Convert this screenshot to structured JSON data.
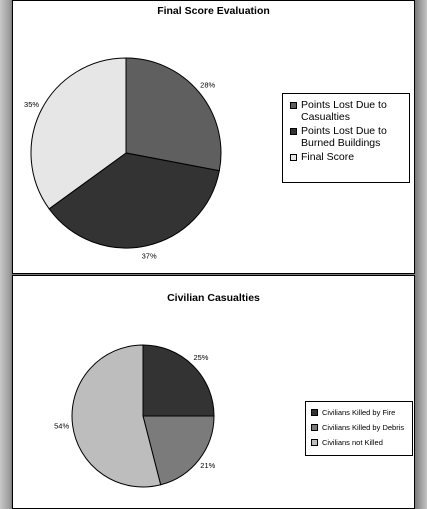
{
  "chart_data": [
    {
      "type": "pie",
      "title": "Final Score Evaluation",
      "legend_position": "right",
      "slices": [
        {
          "label": "Points Lost Due to Casualties",
          "label_lines": [
            "Points Lost Due to",
            "Casualties"
          ],
          "value": 28,
          "value_label": "28%",
          "color": "#5f5f5f"
        },
        {
          "label": "Points Lost Due to Burned Buildings",
          "label_lines": [
            "Points Lost Due to",
            "Burned Buildings"
          ],
          "value": 37,
          "value_label": "37%",
          "color": "#333333"
        },
        {
          "label": "Final Score",
          "label_lines": [
            "Final Score"
          ],
          "value": 35,
          "value_label": "35%",
          "color": "#e6e6e6"
        }
      ]
    },
    {
      "type": "pie",
      "title": "Civilian Casualties",
      "legend_position": "right",
      "slices": [
        {
          "label": "Civilians Killed by Fire",
          "label_lines": [
            "Civilians Killed by Fire"
          ],
          "value": 25,
          "value_label": "25%",
          "color": "#333333"
        },
        {
          "label": "Civilians Killed by Debris",
          "label_lines": [
            "Civilians Killed by Debris"
          ],
          "value": 21,
          "value_label": "21%",
          "color": "#7b7b7b"
        },
        {
          "label": "Civilians not Killed",
          "label_lines": [
            "Civilians not Killed"
          ],
          "value": 54,
          "value_label": "54%",
          "color": "#bdbdbd"
        }
      ]
    }
  ]
}
